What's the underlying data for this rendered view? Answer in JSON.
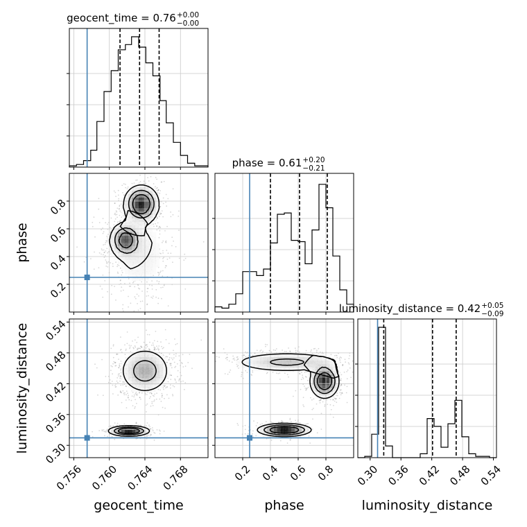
{
  "figure": {
    "type": "corner",
    "truth_color": "#4682b4",
    "line_color": "#000000",
    "grid_color": "#c8c8c8"
  },
  "chart_data": {
    "type": "corner",
    "parameters": [
      {
        "name": "geocent_time",
        "xlabel": "geocent_time",
        "ylabel": "",
        "title": {
          "text": "geocent_time = 0.76",
          "plus": "+0.00",
          "minus": "−0.00"
        },
        "range": [
          0.7555,
          0.7711
        ],
        "ticks": [
          0.756,
          0.76,
          0.764,
          0.768
        ],
        "tick_labels": [
          "0.756",
          "0.760",
          "0.764",
          "0.768"
        ],
        "truth": 0.7575,
        "quantiles": [
          0.7612,
          0.7634,
          0.7656
        ],
        "hist_max": 100,
        "hist_edges": [
          0.7555,
          0.7563,
          0.7571,
          0.7579,
          0.7586,
          0.7594,
          0.7602,
          0.761,
          0.7618,
          0.7625,
          0.7633,
          0.7641,
          0.7649,
          0.7657,
          0.7664,
          0.7672,
          0.768,
          0.7688,
          0.7696,
          0.7703,
          0.7711
        ],
        "hist_counts": [
          1,
          2,
          5,
          13,
          35,
          58,
          74,
          90,
          94,
          100,
          92,
          80,
          70,
          51,
          34,
          19,
          9,
          3,
          1,
          1
        ]
      },
      {
        "name": "phase",
        "xlabel": "phase",
        "ylabel": "phase",
        "title": {
          "text": "phase = 0.61",
          "plus": "+0.20",
          "minus": "−0.21"
        },
        "range": [
          0.0,
          1.0
        ],
        "ticks": [
          0.2,
          0.4,
          0.6,
          0.8
        ],
        "tick_labels": [
          "0.2",
          "0.4",
          "0.6",
          "0.8"
        ],
        "truth": 0.25,
        "quantiles": [
          0.4,
          0.61,
          0.81
        ],
        "hist_max": 100,
        "hist_edges": [
          0.0,
          0.05,
          0.1,
          0.15,
          0.2,
          0.25,
          0.3,
          0.35,
          0.4,
          0.45,
          0.5,
          0.55,
          0.6,
          0.65,
          0.7,
          0.75,
          0.8,
          0.85,
          0.9,
          0.95,
          1.0
        ],
        "hist_counts": [
          4,
          3,
          6,
          14,
          31,
          31,
          28,
          33,
          53,
          75,
          76,
          55,
          54,
          37,
          63,
          98,
          80,
          43,
          17,
          6
        ]
      },
      {
        "name": "luminosity_distance",
        "xlabel": "luminosity_distance",
        "ylabel": "luminosity_distance",
        "title": {
          "text": "luminosity_distance = 0.42",
          "plus": "+0.05",
          "minus": "−0.09"
        },
        "range": [
          0.276,
          0.546
        ],
        "ticks": [
          0.3,
          0.36,
          0.42,
          0.48,
          0.54
        ],
        "tick_labels": [
          "0.30",
          "0.36",
          "0.42",
          "0.48",
          "0.54"
        ],
        "truth": 0.3145,
        "quantiles": [
          0.3265,
          0.4215,
          0.4675
        ],
        "hist_max": 100,
        "hist_edges": [
          0.276,
          0.2895,
          0.303,
          0.3165,
          0.33,
          0.3435,
          0.357,
          0.3705,
          0.384,
          0.3975,
          0.411,
          0.4245,
          0.438,
          0.4515,
          0.465,
          0.4785,
          0.492,
          0.5055,
          0.519,
          0.5325,
          0.546
        ],
        "hist_counts": [
          0,
          1,
          18,
          100,
          9,
          0,
          0,
          0,
          0,
          3,
          30,
          24,
          8,
          26,
          44,
          16,
          3,
          1,
          1,
          0
        ]
      }
    ],
    "pairs": [
      {
        "x": "geocent_time",
        "y": "phase",
        "truth": [
          0.7575,
          0.25
        ],
        "blobs": [
          {
            "cx": 0.7636,
            "cy": 0.78,
            "sx": 0.00095,
            "sy": 0.065,
            "w": 1.0
          },
          {
            "cx": 0.7618,
            "cy": 0.52,
            "sx": 0.00085,
            "sy": 0.06,
            "w": 0.75
          },
          {
            "cx": 0.7634,
            "cy": 0.42,
            "sx": 0.0018,
            "sy": 0.16,
            "w": 0.18
          }
        ]
      },
      {
        "x": "geocent_time",
        "y": "luminosity_distance",
        "truth": [
          0.7575,
          0.3145
        ],
        "blobs": [
          {
            "cx": 0.7622,
            "cy": 0.328,
            "sx": 0.0011,
            "sy": 0.005,
            "w": 1.0
          },
          {
            "cx": 0.764,
            "cy": 0.445,
            "sx": 0.0014,
            "sy": 0.022,
            "w": 0.5
          }
        ]
      },
      {
        "x": "phase",
        "y": "luminosity_distance",
        "truth": [
          0.25,
          0.3145
        ],
        "blobs": [
          {
            "cx": 0.5,
            "cy": 0.33,
            "sx": 0.09,
            "sy": 0.006,
            "w": 1.0
          },
          {
            "cx": 0.79,
            "cy": 0.425,
            "sx": 0.05,
            "sy": 0.016,
            "w": 0.85
          },
          {
            "cx": 0.52,
            "cy": 0.462,
            "sx": 0.2,
            "sy": 0.01,
            "w": 0.35
          }
        ]
      }
    ]
  }
}
